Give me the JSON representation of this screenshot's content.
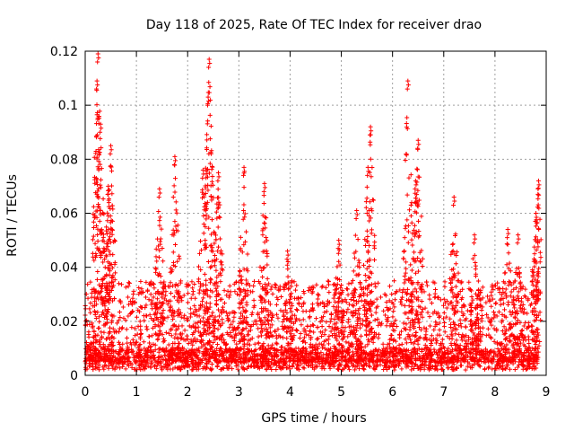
{
  "chart_data": {
    "type": "scatter",
    "title": "Day 118 of 2025, Rate Of TEC Index for receiver drao",
    "xlabel": "GPS time / hours",
    "ylabel": "ROTI / TECUs",
    "xlim": [
      0,
      9
    ],
    "ylim": [
      0,
      0.12
    ],
    "x_ticks": [
      0,
      1,
      2,
      3,
      4,
      5,
      6,
      7,
      8,
      9
    ],
    "y_ticks": [
      0,
      0.02,
      0.04,
      0.06,
      0.08,
      0.1,
      0.12
    ],
    "x_tick_labels": [
      "0",
      "1",
      "2",
      "3",
      "4",
      "5",
      "6",
      "7",
      "8",
      "9"
    ],
    "y_tick_labels": [
      "0",
      "0.02",
      "0.04",
      "0.06",
      "0.08",
      "0.1",
      "0.12"
    ],
    "grid": true,
    "marker": "+",
    "series_color": "#ff0000",
    "series": [
      {
        "name": "ROTI",
        "description_points": "dense cloud of observations approximated by envelope",
        "peaks": [
          {
            "x": 0.25,
            "y": 0.119
          },
          {
            "x": 0.23,
            "y": 0.109
          },
          {
            "x": 0.3,
            "y": 0.093
          },
          {
            "x": 0.45,
            "y": 0.07
          },
          {
            "x": 0.5,
            "y": 0.085
          },
          {
            "x": 1.45,
            "y": 0.069
          },
          {
            "x": 1.75,
            "y": 0.081
          },
          {
            "x": 2.3,
            "y": 0.076
          },
          {
            "x": 2.42,
            "y": 0.117
          },
          {
            "x": 2.4,
            "y": 0.103
          },
          {
            "x": 2.6,
            "y": 0.075
          },
          {
            "x": 3.1,
            "y": 0.077
          },
          {
            "x": 3.5,
            "y": 0.071
          },
          {
            "x": 3.95,
            "y": 0.046
          },
          {
            "x": 4.95,
            "y": 0.05
          },
          {
            "x": 5.3,
            "y": 0.061
          },
          {
            "x": 5.57,
            "y": 0.092
          },
          {
            "x": 5.52,
            "y": 0.077
          },
          {
            "x": 6.3,
            "y": 0.109
          },
          {
            "x": 6.5,
            "y": 0.087
          },
          {
            "x": 6.45,
            "y": 0.072
          },
          {
            "x": 7.2,
            "y": 0.066
          },
          {
            "x": 7.6,
            "y": 0.052
          },
          {
            "x": 8.25,
            "y": 0.054
          },
          {
            "x": 8.45,
            "y": 0.052
          },
          {
            "x": 8.85,
            "y": 0.072
          },
          {
            "x": 8.8,
            "y": 0.06
          }
        ],
        "baseline_range": [
          0.002,
          0.01
        ],
        "typical_range": [
          0.005,
          0.035
        ]
      }
    ]
  }
}
